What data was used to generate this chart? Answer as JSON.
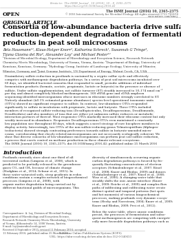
{
  "bg_color": "#ffffff",
  "header_line1": "Errata to:  The ISME Journal , 10 (2016), 10 – 8, 2365–2375",
  "header_line2": "https://doi.org/10.1038/ismej.2016.42",
  "journal_line1": "The ISME Journal (2016) 10, 2365–2375",
  "journal_line2": "© 2016 International Society for Microbial Ecology. All rights reserved 1751-7362/16",
  "journal_line3": "www.nature.com/ismej",
  "open_label": "OPEN",
  "article_type": "ORIGINAL ARTICLE",
  "title": "Consortia of low-abundance bacteria drive sulfate\nreduction-dependent degradation of fermentation\nproducts in peat soil microcosms",
  "authors": "Bela Hausmann¹², Klaus-Holger Knorr³, Katharina Schreck¹, Susannah G Tringe⁴,\nTijana Glavina del Rio⁴, Alexander Loy¹ and Michael Pester¹²",
  "affiliations": "¹Division of Microbial Ecology, Department of Microbiology and Ecosystem Science, Research Network\nChemistry Meets Microbiology, University of Vienna, Vienna, Austria; ²Department of Biology, University of\nKonstanz, Konstanz, Germany; ³Hydrology Group, Institute of Landscape Ecology, University of Münster,\nMünster, Germany and ⁴Joint Genome Institute, US Department of Energy, Walnut Creek, CA, USA",
  "abstract_text": "Dissimilatory sulfate reduction in peatlands is sustained by a cryptic sulfur cycle and effectively\ncompetes with methanogenic degradation pathways. In a series of peat soil microcosms incubated over\n60 days, we identified bacterial consortia that responded to small, periodic additions of individual\nfermentation products (formate, acetate, propionate, lactate or butyrate) in the presence or absence of\nsulfate. Under sulfate supplementation, net sulfate turnover (ST) steadily increased to 10–174 nmol cm⁻³\nper day and almost completely blocked methanogenesis. 16S rRNA gene and cDNA amplicon\nsequencing identified microorganisms whose increases in ribosome numbers strongly correlated to ST.\nNatively abundant (≥0.1% estimated genome abundance) species-level operational taxonomic units\n(OTUs) showed no significant response to sulfate. In contrast, low-abundance OTUs responded\nsignificantly to sulfate in incubations with propionate, lactate and butyrate. These OTUs included\nmembers of recognized sulfate-reducing taxa (Desulfopisciculus, Desulfosporosinus, Desulfomonile,\nDesulfovibrio) and also members of taxa that are either yet unknown sulfate reducers or metabolic\ninteraction partners of thereof. Most responsive OTUs markedly increased their ribosome content but only\nweakly increased in abundance. Responsive Desulfosporosinus OTUs even maintained a constantly\nlow population size throughout 60 days, which suggests a novel strategy of rare biosphere members to\ndisplay activity. Interestingly, two OTUs of the non-sulfate-reducing genus Telmatospirillum (Alphapro-\nteobacteria) showed strongly contrasting preferences towards sulfate in butyrate-amended micro-\ncosms, corroborating that closely related microorganisms are not necessarily ecologically coherent. We\nshow that diverse consortia of low-abundance microorganisms can perform peat soil sulfate reduction,\na process that exerts control on methane production in these climate-relevant ecosystems.\nThe ISME Journal (2016) 10, 2365–2375; doi:10.1038/ismej.2016.42; published online 25 March 2016",
  "intro_title": "Introduction",
  "intro_col1": "Peatlands currently store about one-third of all\nterrestrial carbon (Limpens et al., 2008), which is\npredicted to be partially released to the greenhouse\ngases CO₂ and CH₄ because of climate change\n(Hodgkins et al., 2014; Schuur et al., 2015). In\nthese water-saturated soils, steep gradients in redox\nconditions sustain a complex network of biogeochemical\nprocesses (Limpens et al., 2008), with\norganic matter degradation being carried out by\ndifferent functional guilds of microorganisms. This",
  "intro_col2": "diversity of simultaneously occurring organic\ncarbon degradation pathways is favored by fre-\nquently fluctuating concentrations of electron\nacceptors (Schmalenberger et al., 2007; Küsel\net al., 2008; Knorr and Blodau, 2009) and donors\n(Schmalenberger et al., 2007; Küsel et al., 2008;\nWise et al., 2000). A changing water table that\nsteadily shifts the oxic–anoxic interface (Knorr\net al., 2009; Reiche et al., 2009) and complex flow\npaths of infiltrating and exfiltrating water create\ndistinct spatial and temporal patterns (hot spots\nand hot moments) of various biogeochemical\nprocesses, making peatlands very dynamic ecosys-\ntems (Hecky and Norrstrom, 2004; Knorr et al., 2009;\nKnorr and Blodau, 2009; Frei et al., 2012).",
  "intro_col2b": "Below the water table, where anoxic conditions\npersist, the processes of fermentation and subse-\nquent methanogenesis are competing with energeti-\ncally more favorable degradation pathways such as",
  "corr_label": "Correspondence: A. Loy, Division of Microbial Ecology,\nDepartment of Microbiology and Ecosystem Science,\nResearch Network Chemistry Meets Microbiology, University\nof Vienna, Althanstraße 14, 1090 Vienna, Austria.\nE-mail: loy@microbial-ecology.net\nReceived 4 September 2015; revised 11 February 2016; accepted\n11 February 2016; published online 25 March 2016",
  "footer_label": "Konstanz Online-Publikations-System (KOPS)\nURL: https://nbn-resolving.de/urn:nbn:de:bsz:352-0-340633"
}
